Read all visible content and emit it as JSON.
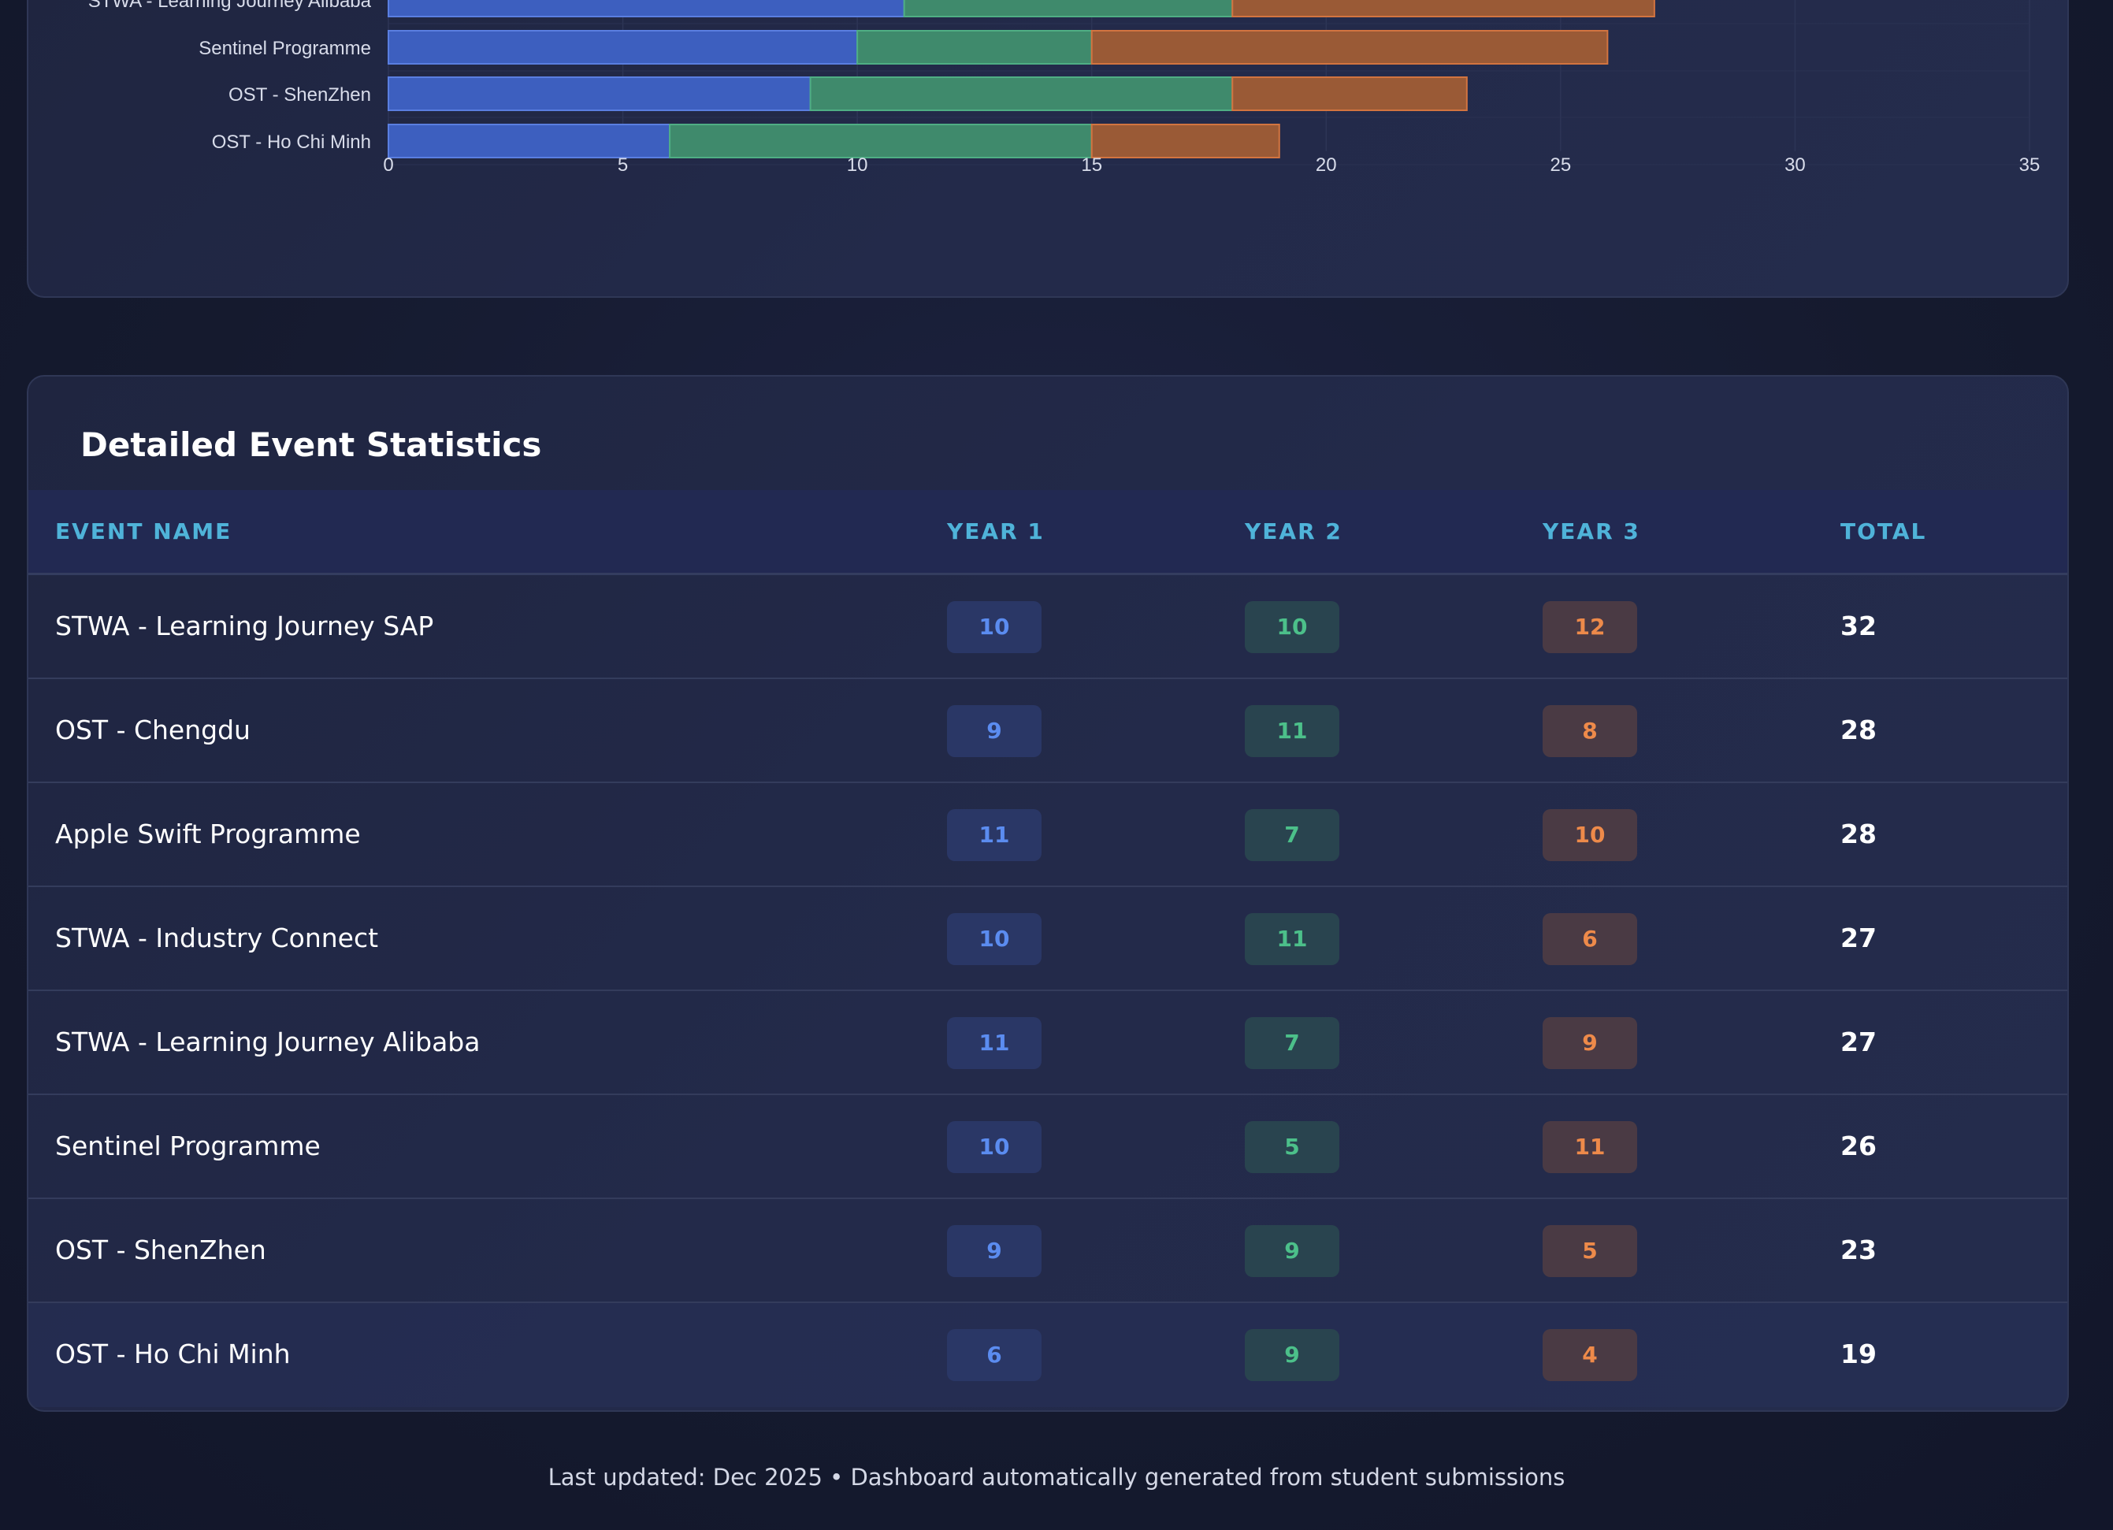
{
  "chart_data": {
    "type": "bar",
    "stacked": true,
    "orientation": "horizontal",
    "categories": [
      "STWA - Learning Journey Alibaba",
      "Sentinel Programme",
      "OST - ShenZhen",
      "OST - Ho Chi Minh"
    ],
    "series": [
      {
        "values": [
          11,
          10,
          9,
          6
        ],
        "color": "#3d5fbf"
      },
      {
        "values": [
          7,
          5,
          9,
          9
        ],
        "color": "#3f8a6c"
      },
      {
        "values": [
          9,
          11,
          5,
          4
        ],
        "color": "#9a5a36"
      }
    ],
    "xlim": [
      0,
      35
    ],
    "xticks": [
      "0",
      "5",
      "10",
      "15",
      "20",
      "25",
      "30",
      "35"
    ],
    "grid": true
  },
  "table": {
    "title": "Detailed Event Statistics",
    "headers": {
      "name": "EVENT NAME",
      "year1": "YEAR 1",
      "year2": "YEAR 2",
      "year3": "YEAR 3",
      "total": "TOTAL"
    },
    "rows": [
      {
        "name": "STWA - Learning Journey SAP",
        "year1": "10",
        "year2": "10",
        "year3": "12",
        "total": "32"
      },
      {
        "name": "OST - Chengdu",
        "year1": "9",
        "year2": "11",
        "year3": "8",
        "total": "28"
      },
      {
        "name": "Apple Swift Programme",
        "year1": "11",
        "year2": "7",
        "year3": "10",
        "total": "28"
      },
      {
        "name": "STWA - Industry Connect",
        "year1": "10",
        "year2": "11",
        "year3": "6",
        "total": "27"
      },
      {
        "name": "STWA - Learning Journey Alibaba",
        "year1": "11",
        "year2": "7",
        "year3": "9",
        "total": "27"
      },
      {
        "name": "Sentinel Programme",
        "year1": "10",
        "year2": "5",
        "year3": "11",
        "total": "26"
      },
      {
        "name": "OST - ShenZhen",
        "year1": "9",
        "year2": "9",
        "year3": "5",
        "total": "23"
      },
      {
        "name": "OST - Ho Chi Minh",
        "year1": "6",
        "year2": "9",
        "year3": "4",
        "total": "19"
      }
    ]
  },
  "footer": {
    "text": "Last updated: Dec 2025 • Dashboard automatically generated from student submissions"
  },
  "colors": {
    "year1": "#5b8cf0",
    "year2": "#4cc08a",
    "year3": "#ee8a4a",
    "header_text": "#4fb3d9"
  }
}
